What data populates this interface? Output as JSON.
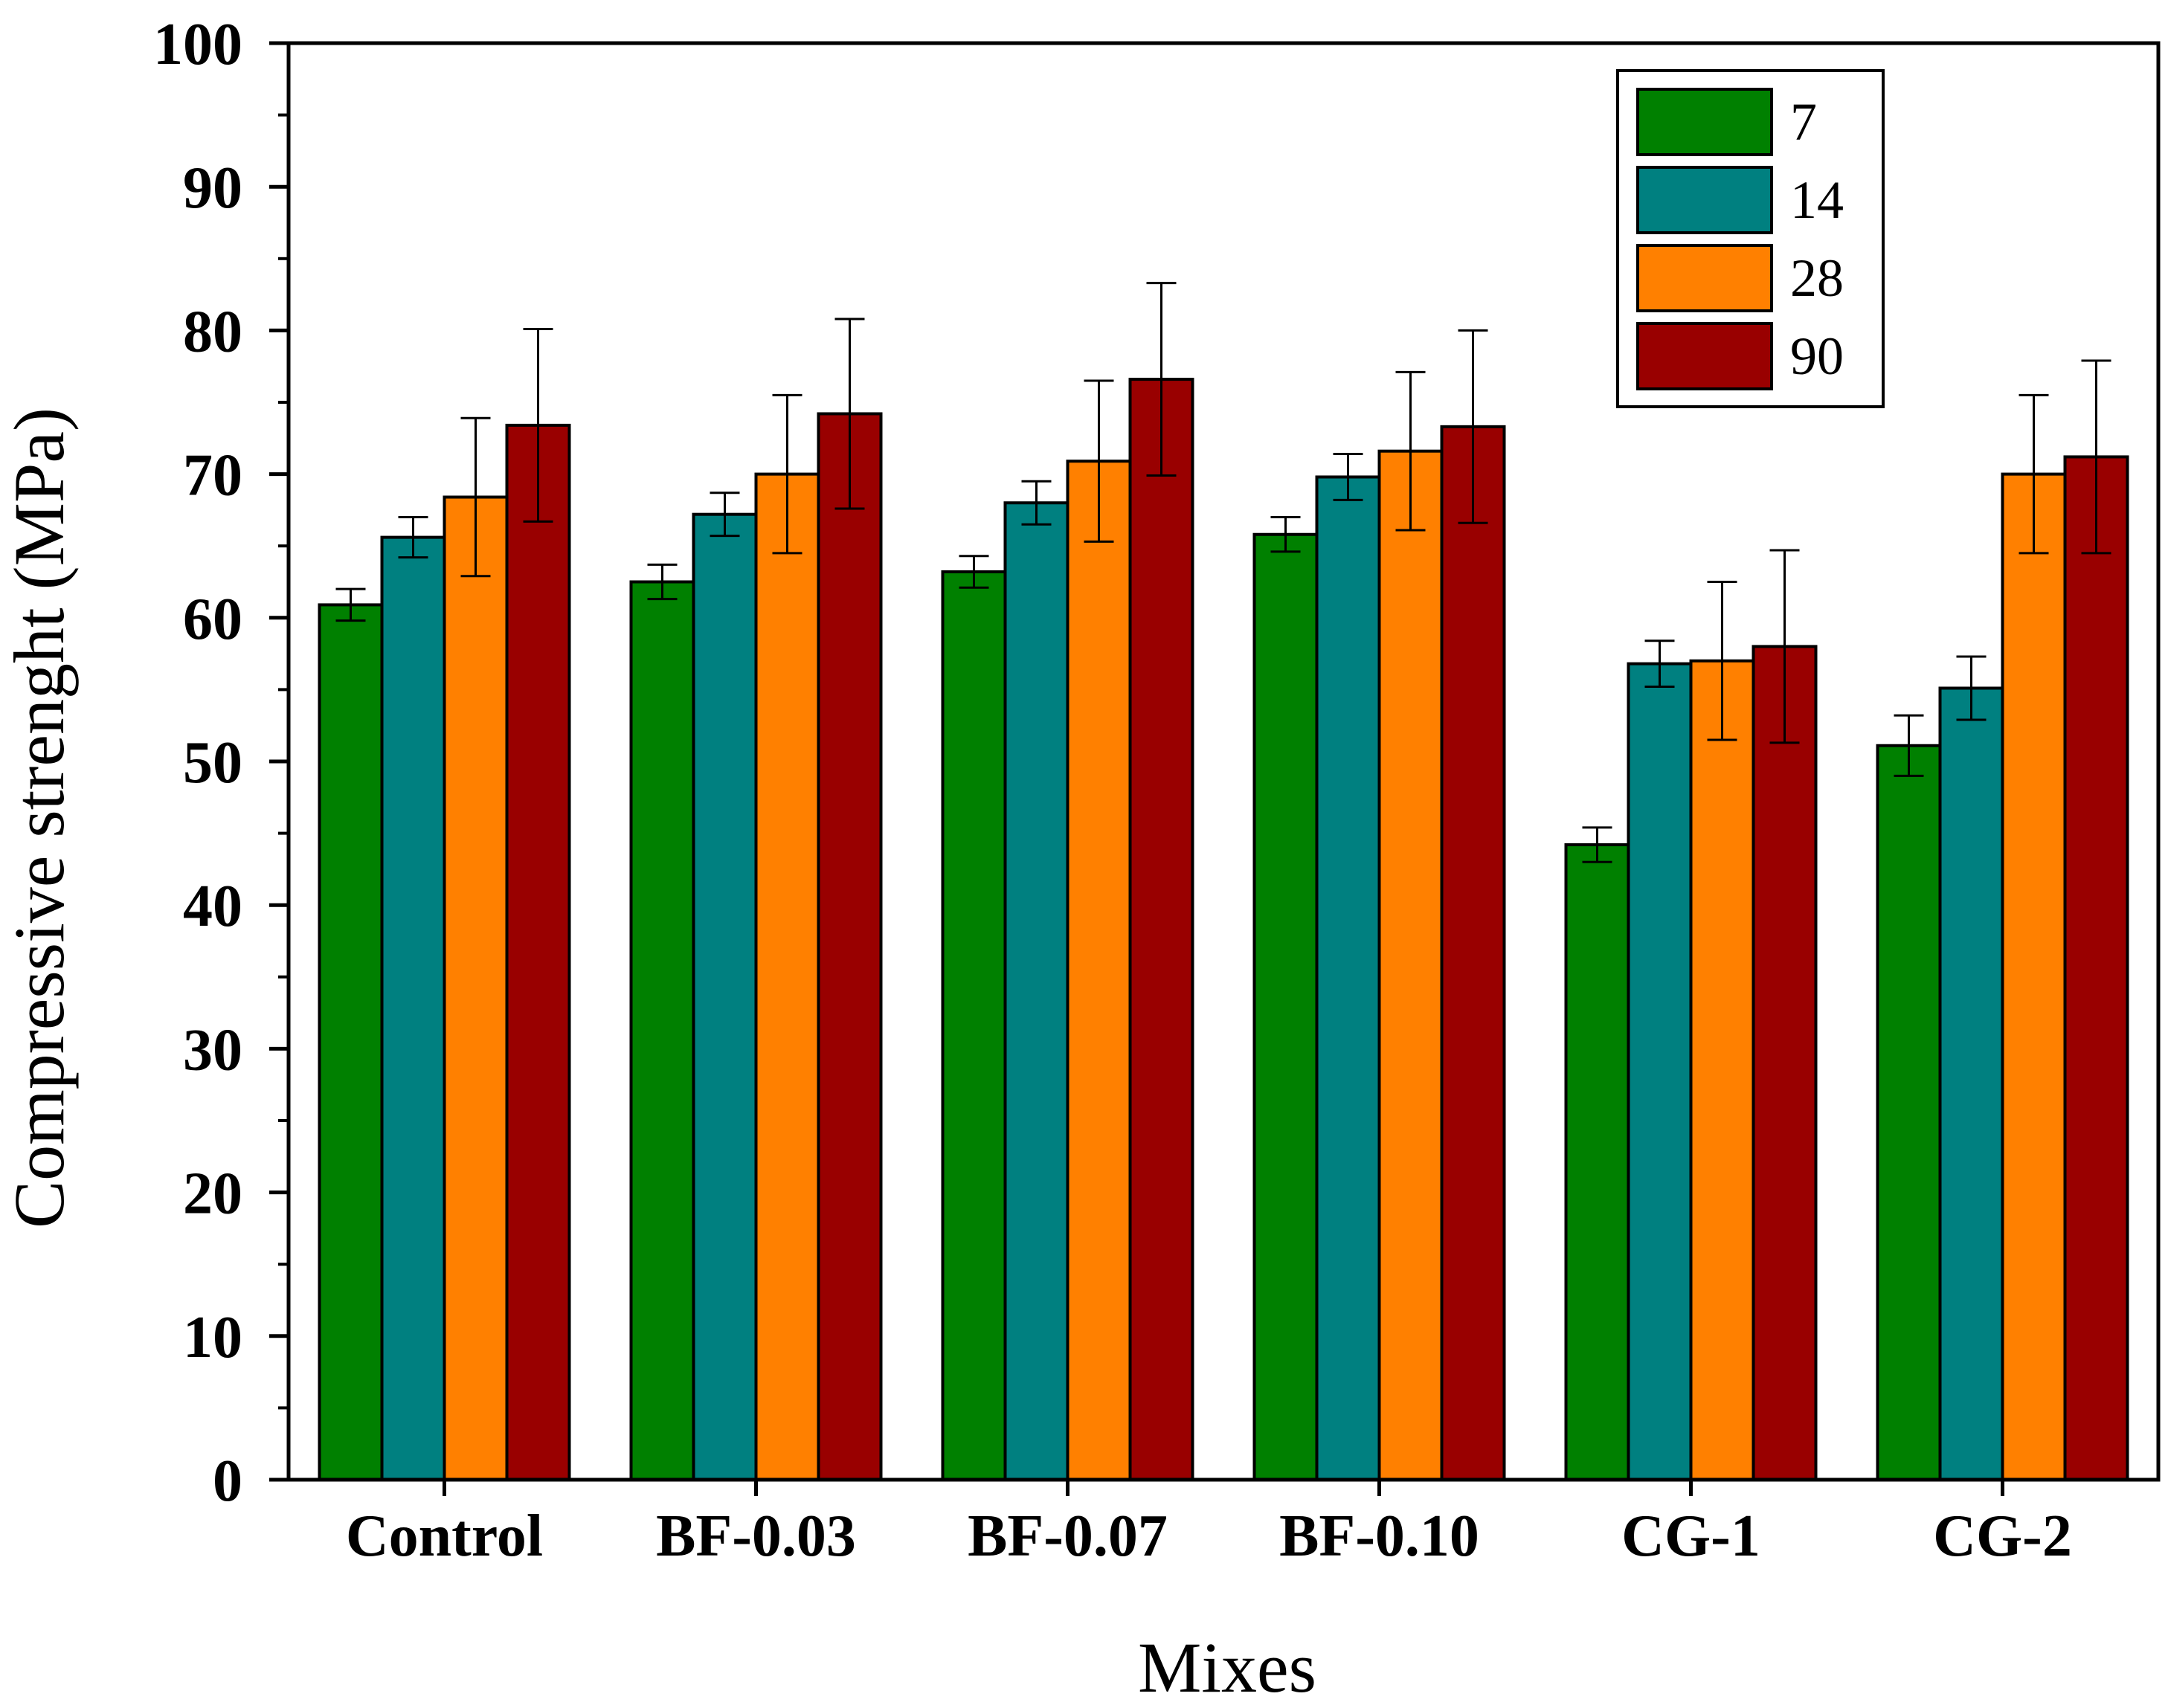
{
  "chart_data": {
    "type": "bar",
    "title": "",
    "xlabel": "Mixes",
    "ylabel": "Compressive strenght (MPa)",
    "ylim": [
      0,
      100
    ],
    "yticks": [
      0,
      10,
      20,
      30,
      40,
      50,
      60,
      70,
      80,
      90,
      100
    ],
    "categories": [
      "Control",
      "BF-0.03",
      "BF-0.07",
      "BF-0.10",
      "CG-1",
      "CG-2"
    ],
    "legend_position": "top-right",
    "series": [
      {
        "name": "7",
        "color": "#008000",
        "values": [
          60.9,
          62.5,
          63.2,
          65.8,
          44.2,
          51.1
        ],
        "errors": [
          1.1,
          1.2,
          1.1,
          1.2,
          1.2,
          2.1
        ]
      },
      {
        "name": "14",
        "color": "#008080",
        "values": [
          65.6,
          67.2,
          68.0,
          69.8,
          56.8,
          55.1
        ],
        "errors": [
          1.4,
          1.5,
          1.5,
          1.6,
          1.6,
          2.2
        ]
      },
      {
        "name": "28",
        "color": "#FF8000",
        "values": [
          68.4,
          70.0,
          70.9,
          71.6,
          57.0,
          70.0
        ],
        "errors": [
          5.5,
          5.5,
          5.6,
          5.5,
          5.5,
          5.5
        ]
      },
      {
        "name": "90",
        "color": "#990000",
        "values": [
          73.4,
          74.2,
          76.6,
          73.3,
          58.0,
          71.2
        ],
        "errors": [
          6.7,
          6.6,
          6.7,
          6.7,
          6.7,
          6.7
        ]
      }
    ]
  }
}
